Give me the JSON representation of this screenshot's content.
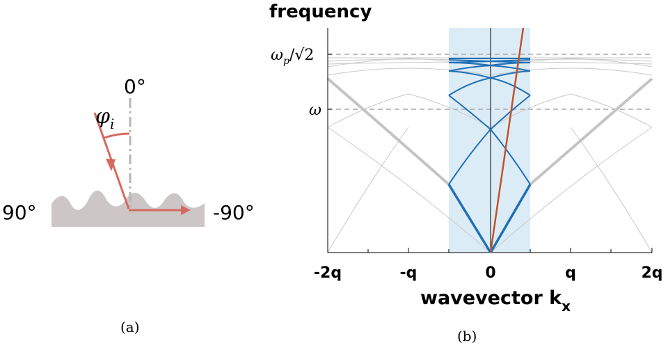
{
  "panel_a": {
    "caption": "(a)",
    "angle_top": "0°",
    "angle_left": "90°",
    "angle_right": "-90°",
    "incidence_symbol": "φ",
    "incidence_subscript": "i"
  },
  "panel_b": {
    "caption": "(b)",
    "y_label": "frequency",
    "x_label_main": "wavevector k",
    "x_label_sub": "x",
    "x_ticks": [
      "-2q",
      "-q",
      "0",
      "q",
      "2q"
    ],
    "y_tick_omega_p": "ω",
    "y_tick_omega_p_sub": "p",
    "y_tick_omega_p_tail": "/√2",
    "y_tick_omega": "ω"
  },
  "colors": {
    "light_cone": "#c0522a",
    "folded_band": "#1f6fb5",
    "brillouin_zone": "#dcecf6",
    "gray_band": "#c8c8c8",
    "surface": "#ccc6c6",
    "ray": "#d46a60",
    "axis": "#000000"
  }
}
